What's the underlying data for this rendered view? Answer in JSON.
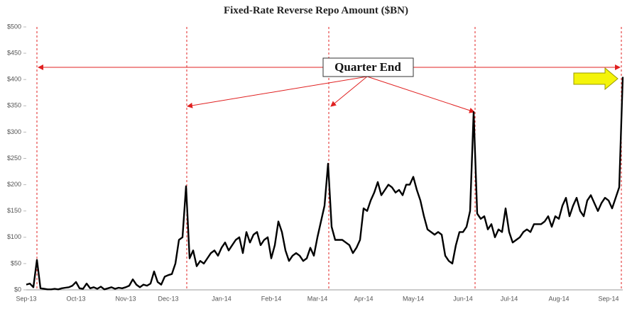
{
  "chart_data": {
    "type": "line",
    "title": "Fixed-Rate Reverse Repo Amount ($BN)",
    "annotation": "Quarter End",
    "categories": [
      "Sep-13",
      null,
      null,
      null,
      null,
      null,
      null,
      null,
      null,
      null,
      null,
      null,
      null,
      null,
      "Oct-13",
      null,
      null,
      null,
      null,
      null,
      null,
      null,
      null,
      null,
      null,
      null,
      null,
      null,
      "Nov-13",
      null,
      null,
      null,
      null,
      null,
      null,
      null,
      null,
      null,
      null,
      null,
      "Dec-13",
      null,
      null,
      null,
      null,
      null,
      null,
      null,
      null,
      null,
      null,
      null,
      null,
      null,
      null,
      "Jan-14",
      null,
      null,
      null,
      null,
      null,
      null,
      null,
      null,
      null,
      null,
      null,
      null,
      null,
      "Feb-14",
      null,
      null,
      null,
      null,
      null,
      null,
      null,
      null,
      null,
      null,
      null,
      null,
      "Mar-14",
      null,
      null,
      null,
      null,
      null,
      null,
      null,
      null,
      null,
      null,
      null,
      null,
      "Apr-14",
      null,
      null,
      null,
      null,
      null,
      null,
      null,
      null,
      null,
      null,
      null,
      null,
      null,
      "May-14",
      null,
      null,
      null,
      null,
      null,
      null,
      null,
      null,
      null,
      null,
      null,
      null,
      null,
      "Jun-14",
      null,
      null,
      null,
      null,
      null,
      null,
      null,
      null,
      null,
      null,
      null,
      null,
      "Jul-14",
      null,
      null,
      null,
      null,
      null,
      null,
      null,
      null,
      null,
      null,
      null,
      null,
      null,
      "Aug-14",
      null,
      null,
      null,
      null,
      null,
      null,
      null,
      null,
      null,
      null,
      null,
      null,
      null,
      "Sep-14",
      null,
      null,
      null,
      null
    ],
    "series": [
      {
        "color": "#000000",
        "values": [
          10,
          12,
          5,
          57,
          3,
          2,
          1,
          1,
          2,
          1,
          3,
          4,
          5,
          8,
          15,
          3,
          2,
          12,
          3,
          5,
          2,
          6,
          1,
          3,
          5,
          2,
          4,
          3,
          5,
          8,
          20,
          10,
          5,
          10,
          8,
          12,
          35,
          15,
          10,
          25,
          28,
          30,
          50,
          95,
          100,
          197,
          60,
          75,
          45,
          55,
          50,
          60,
          70,
          75,
          65,
          80,
          90,
          75,
          85,
          95,
          100,
          70,
          110,
          90,
          105,
          110,
          85,
          95,
          100,
          60,
          85,
          130,
          110,
          75,
          55,
          65,
          70,
          65,
          55,
          60,
          80,
          65,
          100,
          130,
          160,
          240,
          120,
          95,
          95,
          95,
          90,
          85,
          70,
          80,
          95,
          155,
          150,
          170,
          185,
          205,
          180,
          190,
          200,
          195,
          185,
          190,
          180,
          200,
          200,
          215,
          190,
          170,
          140,
          115,
          110,
          105,
          110,
          105,
          65,
          55,
          50,
          85,
          110,
          110,
          120,
          150,
          338,
          145,
          135,
          140,
          115,
          125,
          100,
          115,
          110,
          155,
          110,
          90,
          95,
          100,
          110,
          115,
          110,
          125,
          125,
          125,
          130,
          140,
          120,
          140,
          135,
          160,
          175,
          140,
          160,
          175,
          150,
          140,
          170,
          180,
          165,
          150,
          165,
          175,
          170,
          155,
          175,
          195,
          405
        ]
      }
    ],
    "ylim": [
      0,
      500
    ],
    "yticks": [
      {
        "value": 0,
        "label": "$0"
      },
      {
        "value": 50,
        "label": "$50"
      },
      {
        "value": 100,
        "label": "$100"
      },
      {
        "value": 150,
        "label": "$150"
      },
      {
        "value": 200,
        "label": "$200"
      },
      {
        "value": 250,
        "label": "$250"
      },
      {
        "value": 300,
        "label": "$300"
      },
      {
        "value": 350,
        "label": "$350"
      },
      {
        "value": 400,
        "label": "$400"
      },
      {
        "value": 450,
        "label": "$450"
      },
      {
        "value": 500,
        "label": "$500"
      }
    ],
    "grid": false
  }
}
